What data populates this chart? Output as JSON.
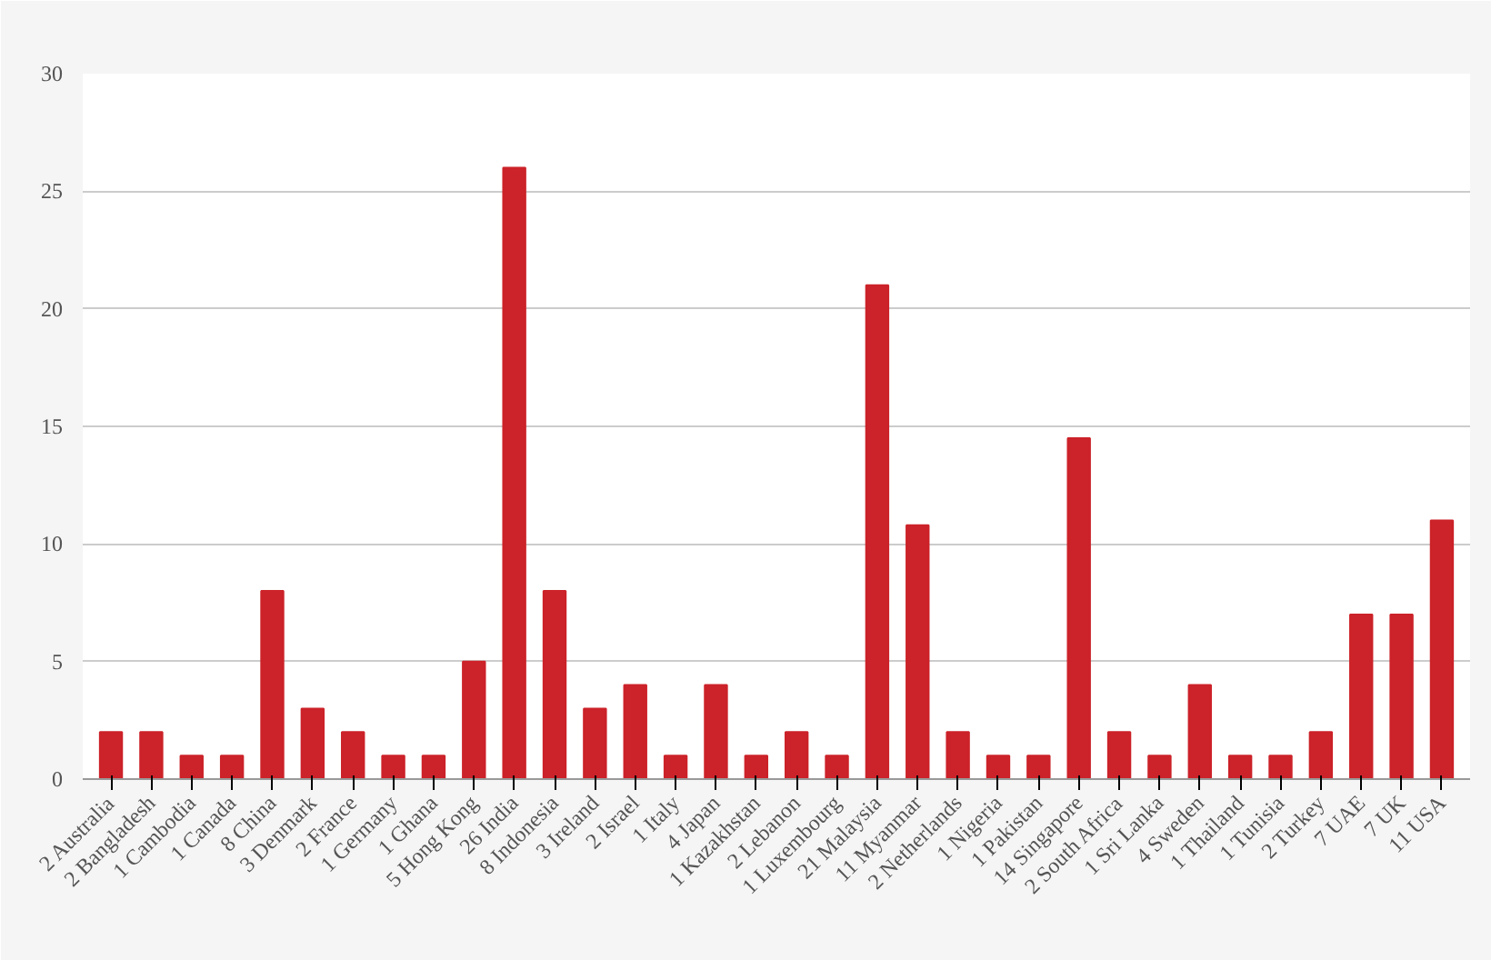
{
  "chart_data": {
    "type": "bar",
    "categories": [
      "2 Australia",
      "2 Bangladesh",
      "1 Cambodia",
      "1 Canada",
      "8 China",
      "3 Denmark",
      "2 France",
      "1 Germany",
      "1 Ghana",
      "5 Hong Kong",
      "26 India",
      "8 Indonesia",
      "3 Ireland",
      "2 Israel",
      "1 Italy",
      "4 Japan",
      "1 Kazakhstan",
      "2 Lebanon",
      "1 Luxembourg",
      "21 Malaysia",
      "11 Myanmar",
      "2 Netherlands",
      "1 Nigeria",
      "1 Pakistan",
      "14 Singapore",
      "2 South Africa",
      "1 Sri Lanka",
      "4 Sweden",
      "1 Thailand",
      "1 Tunisia",
      "2 Turkey",
      "7 UAE",
      "7 UK",
      "11 USA"
    ],
    "values": [
      2,
      2,
      1,
      1,
      8,
      3,
      2,
      1,
      1,
      5,
      26,
      8,
      3,
      4,
      1,
      4,
      1,
      2,
      1,
      21,
      10.8,
      2,
      1,
      1,
      14.5,
      2,
      1,
      4,
      1,
      1,
      2,
      7,
      7,
      11
    ],
    "color": "#cc2229",
    "ylim": [
      0,
      30
    ],
    "yticks": [
      0,
      5,
      10,
      15,
      20,
      25,
      30
    ],
    "grid": "y"
  }
}
